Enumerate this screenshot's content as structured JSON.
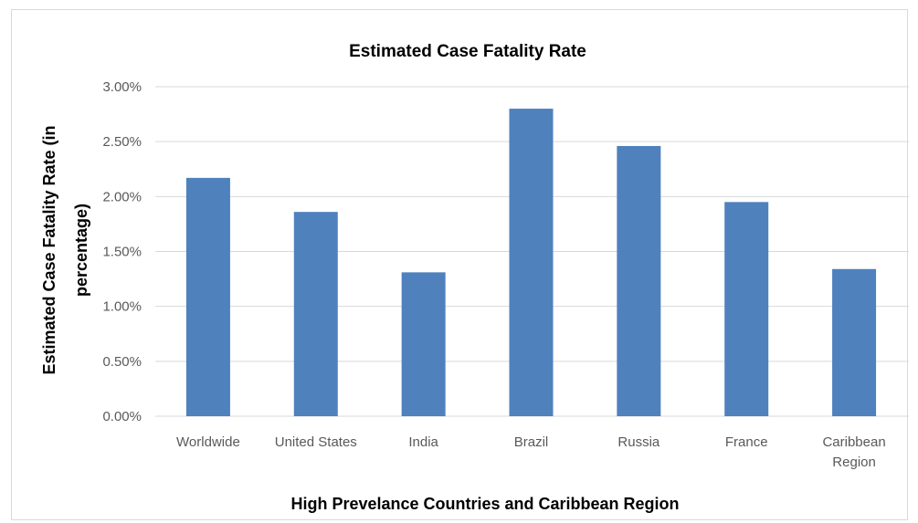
{
  "chart_data": {
    "type": "bar",
    "title": "Estimated Case Fatality Rate",
    "xlabel": "High Prevelance Countries and Caribbean Region",
    "ylabel_lines": [
      "Estimated Case Fatality Rate (in",
      "percentage)"
    ],
    "categories": [
      [
        "Worldwide"
      ],
      [
        "United States"
      ],
      [
        "India"
      ],
      [
        "Brazil"
      ],
      [
        "Russia"
      ],
      [
        "France"
      ],
      [
        "Caribbean",
        "Region"
      ]
    ],
    "values": [
      2.17,
      1.86,
      1.31,
      2.8,
      2.46,
      1.95,
      1.34
    ],
    "ylim": [
      0,
      3.0
    ],
    "yticks": [
      0,
      0.5,
      1.0,
      1.5,
      2.0,
      2.5,
      3.0
    ],
    "ytick_labels": [
      "0.00%",
      "0.50%",
      "1.00%",
      "1.50%",
      "2.00%",
      "2.50%",
      "3.00%"
    ],
    "grid": true,
    "legend": "none",
    "bar_color": "#4f81bd",
    "grid_color": "#d9d9d9"
  }
}
